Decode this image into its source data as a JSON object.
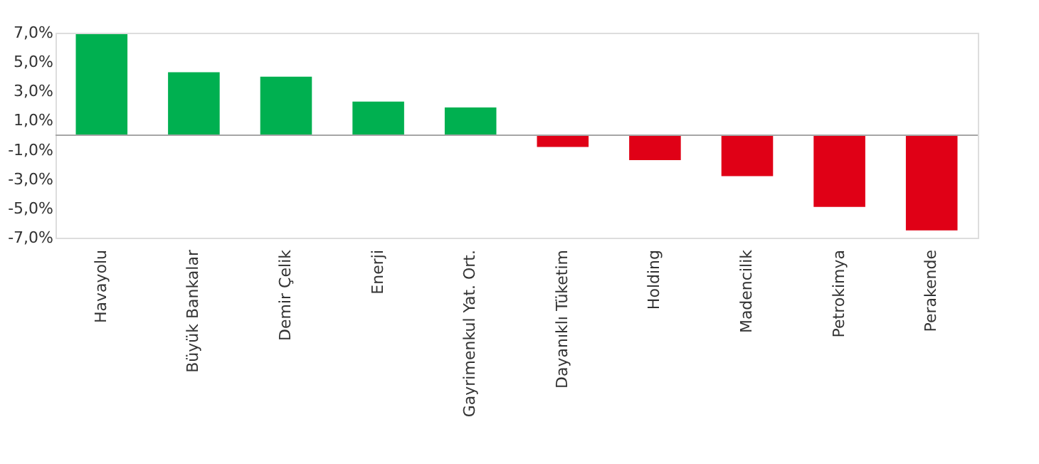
{
  "chart_data": {
    "type": "bar",
    "categories": [
      "Havayolu",
      "Büyük Bankalar",
      "Demir Çelik",
      "Enerji",
      "Gayrimenkul Yat. Ort.",
      "Dayanıklı Tüketim",
      "Holding",
      "Madencilik",
      "Petrokimya",
      "Perakende"
    ],
    "values": [
      6.9,
      4.3,
      4.0,
      2.3,
      1.9,
      -0.8,
      -1.7,
      -2.8,
      -4.9,
      -6.5
    ],
    "colors": [
      "#00b050",
      "#00b050",
      "#00b050",
      "#00b050",
      "#00b050",
      "#e00016",
      "#e00016",
      "#e00016",
      "#e00016",
      "#e00016"
    ],
    "ylim": [
      -7,
      7
    ],
    "yticks": [
      {
        "value": 7,
        "label": "7,0%"
      },
      {
        "value": 5,
        "label": "5,0%"
      },
      {
        "value": 3,
        "label": "3,0%"
      },
      {
        "value": 1,
        "label": "1,0%"
      },
      {
        "value": -1,
        "label": "-1,0%"
      },
      {
        "value": -3,
        "label": "-3,0%"
      },
      {
        "value": -5,
        "label": "-5,0%"
      },
      {
        "value": -7,
        "label": "-7,0%"
      }
    ],
    "ref_lines": [
      {
        "axis": "y",
        "value": 0,
        "color": "#a6a6a6"
      }
    ],
    "grid": false,
    "legend": false
  }
}
